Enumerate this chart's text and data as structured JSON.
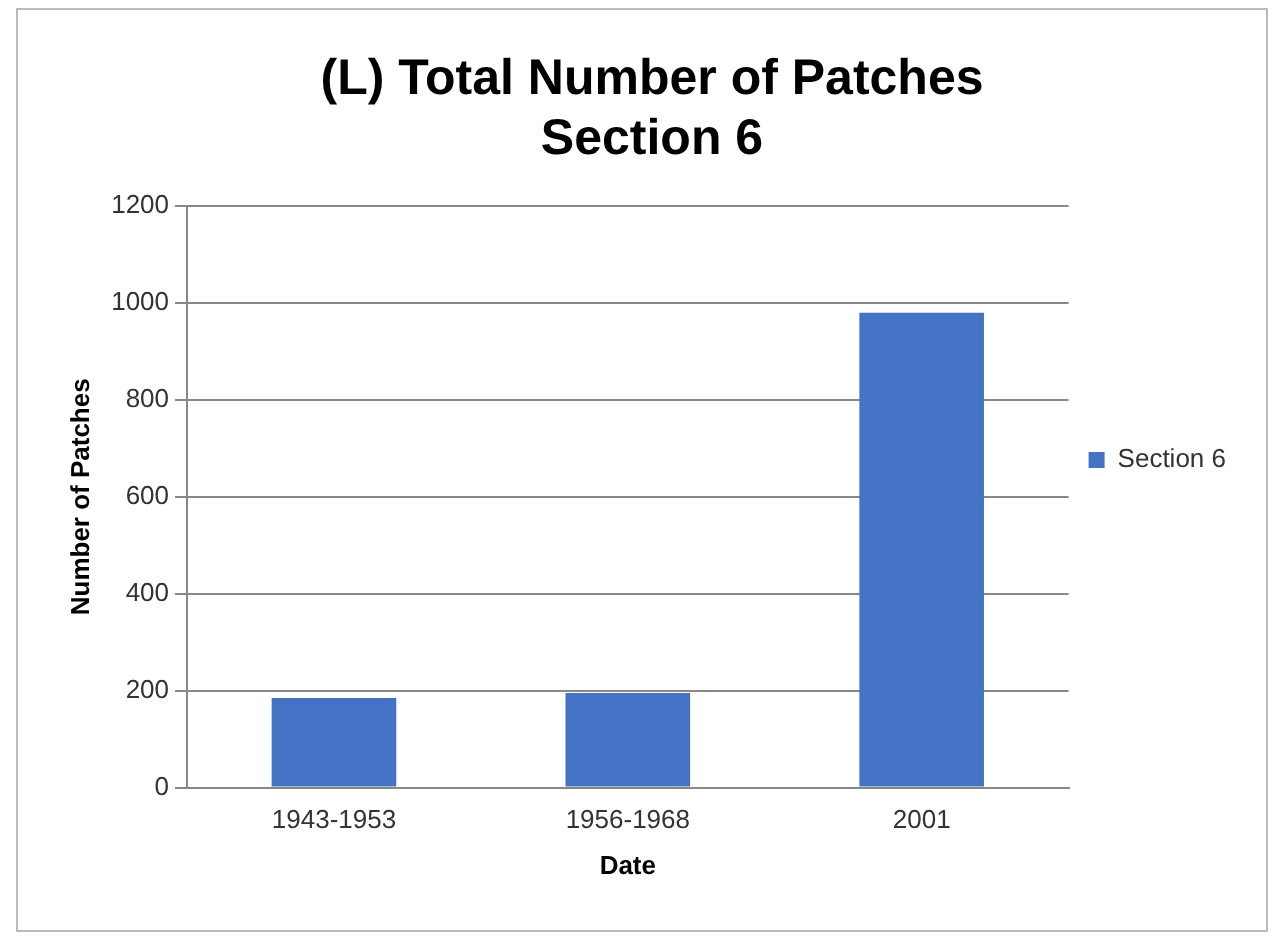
{
  "chart_data": {
    "type": "bar",
    "title": [
      "(L) Total Number of Patches",
      "Section 6"
    ],
    "xlabel": "Date",
    "ylabel": "Number of Patches",
    "categories": [
      "1943-1953",
      "1956-1968",
      "2001"
    ],
    "series": [
      {
        "name": "Section 6",
        "color": "#4472c4",
        "values": [
          185,
          195,
          980
        ]
      }
    ],
    "ylim": [
      0,
      1200
    ],
    "yticks": [
      0,
      200,
      400,
      600,
      800,
      1000,
      1200
    ],
    "grid": "y",
    "legend": "right"
  }
}
